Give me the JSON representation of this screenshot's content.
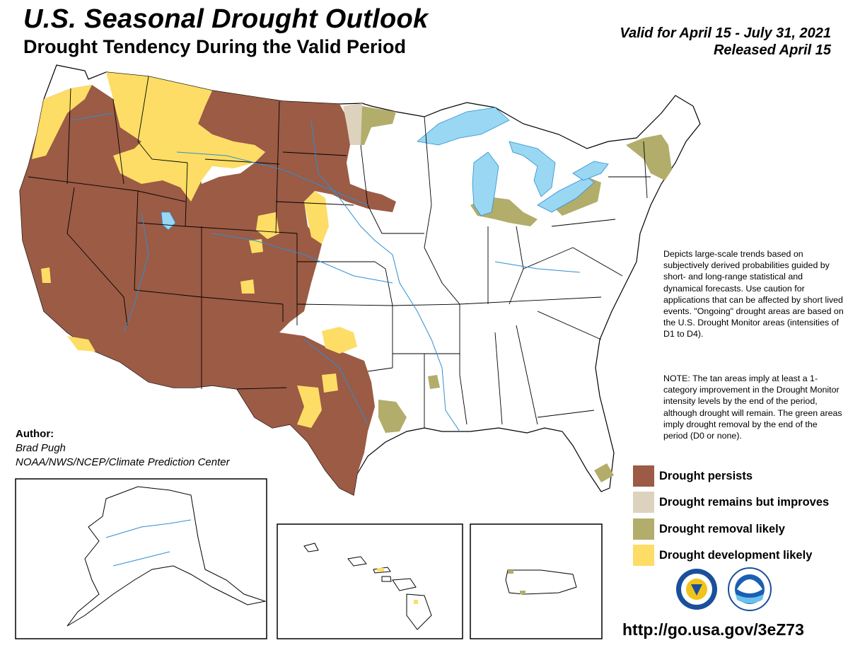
{
  "header": {
    "title": "U.S. Seasonal Drought Outlook",
    "subtitle": "Drought Tendency During the Valid Period",
    "valid": "Valid for April 15 - July 31, 2021",
    "released": "Released April 15"
  },
  "description": "Depicts large-scale trends based on subjectively derived probabilities guided by short- and long-range statistical and dynamical forecasts. Use caution for applications that can be affected by short lived events. \"Ongoing\" drought areas are based on the U.S. Drought Monitor areas (intensities of D1 to D4).",
  "note": "NOTE: The tan areas imply at least a 1-category improvement in the Drought Monitor intensity levels by the end of the period, although drought will remain. The green areas imply drought removal by the end of the period (D0 or none).",
  "author": {
    "label": "Author:",
    "name": "Brad Pugh",
    "org": "NOAA/NWS/NCEP/Climate Prediction Center"
  },
  "legend": [
    {
      "label": "Drought persists",
      "color": "#9b5b45"
    },
    {
      "label": "Drought remains but improves",
      "color": "#ddd2bd"
    },
    {
      "label": "Drought removal likely",
      "color": "#b2ad6a"
    },
    {
      "label": "Drought development likely",
      "color": "#fddd66"
    }
  ],
  "colors": {
    "water": "#99d7f2",
    "rivers": "#2c8fd3",
    "borders": "#000000"
  },
  "logos": [
    "nws-logo",
    "noaa-logo"
  ],
  "url": "http://go.usa.gov/3eZ73"
}
